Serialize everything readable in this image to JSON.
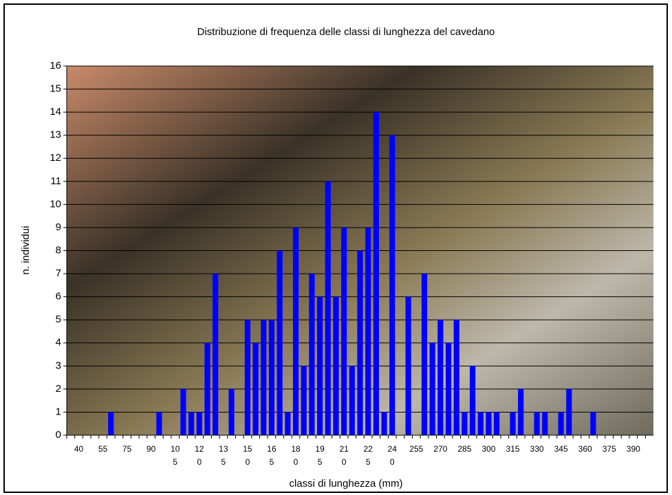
{
  "chart_data": {
    "type": "bar",
    "title": "Distribuzione di frequenza delle classi di lunghezza del cavedano",
    "x_label": "classi di lunghezza (mm)",
    "y_label": "n. individui",
    "categories": [
      null,
      "40",
      null,
      null,
      "55",
      null,
      null,
      "75",
      null,
      null,
      "90",
      null,
      null,
      "105",
      null,
      null,
      "120",
      null,
      null,
      "135",
      null,
      null,
      "150",
      null,
      null,
      "165",
      null,
      null,
      "180",
      null,
      null,
      "195",
      null,
      null,
      "210",
      null,
      null,
      "225",
      null,
      null,
      "240",
      null,
      null,
      "255",
      null,
      null,
      "270",
      null,
      null,
      "285",
      null,
      null,
      "300",
      null,
      null,
      "315",
      null,
      null,
      "330",
      null,
      null,
      "345",
      null,
      null,
      "360",
      null,
      null,
      "375",
      null,
      null,
      "390",
      null,
      null
    ],
    "values": [
      0,
      0,
      0,
      0,
      0,
      1,
      0,
      0,
      0,
      0,
      0,
      1,
      0,
      0,
      2,
      1,
      1,
      4,
      7,
      0,
      2,
      0,
      5,
      4,
      5,
      5,
      8,
      1,
      9,
      3,
      7,
      6,
      11,
      6,
      9,
      3,
      8,
      9,
      14,
      1,
      13,
      0,
      6,
      0,
      7,
      4,
      5,
      4,
      5,
      1,
      3,
      1,
      1,
      1,
      0,
      1,
      2,
      0,
      1,
      1,
      0,
      1,
      2,
      0,
      0,
      1,
      0,
      0,
      0,
      0,
      0,
      0,
      0
    ],
    "color": "#0000ff",
    "ylim": [
      0,
      16
    ],
    "yticks": [
      0,
      1,
      2,
      3,
      4,
      5,
      6,
      7,
      8,
      9,
      10,
      11,
      12,
      13,
      14,
      15,
      16
    ],
    "grid": true
  }
}
